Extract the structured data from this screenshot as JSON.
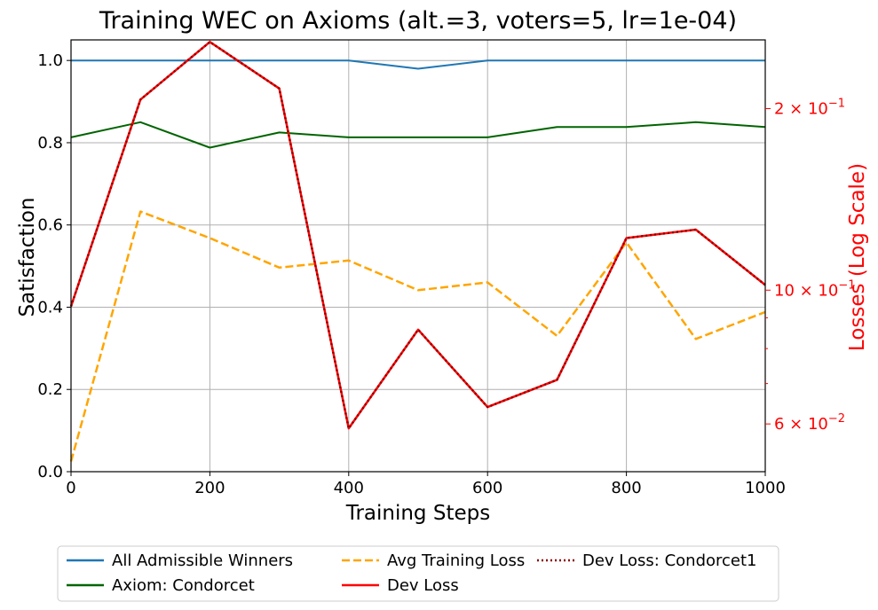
{
  "chart_data": {
    "type": "line",
    "title": "Training WEC on Axioms (alt.=3, voters=5, lr=1e-04)",
    "xlabel": "Training Steps",
    "ylabel_left": "Satisfaction",
    "ylabel_right": "Losses (Log Scale)",
    "xlim": [
      0,
      1000
    ],
    "ylim_left": [
      0.0,
      1.05
    ],
    "ylim_right": [
      0.05,
      0.26
    ],
    "right_scale": "log",
    "grid": true,
    "legend_position": "bottom-center",
    "x_ticks": [
      "0",
      "200",
      "400",
      "600",
      "800",
      "1000"
    ],
    "y_left_ticks": [
      "0.0",
      "0.2",
      "0.4",
      "0.6",
      "0.8",
      "1.0"
    ],
    "y_right_tick_labels": [
      {
        "value": 0.2,
        "base": "2",
        "exp": "−1"
      },
      {
        "value": 0.1,
        "base": "10",
        "exp": "−1"
      },
      {
        "value": 0.06,
        "base": "6",
        "exp": "−2"
      }
    ],
    "y_right_minor_ticks": [
      0.09,
      0.08,
      0.07
    ],
    "x": [
      0,
      100,
      200,
      300,
      400,
      500,
      600,
      700,
      800,
      900,
      1000
    ],
    "series": [
      {
        "name": "All Admissible Winners",
        "axis": "left",
        "color": "#1f77b4",
        "style": "solid",
        "values": [
          1.0,
          1.0,
          1.0,
          1.0,
          1.0,
          0.98,
          1.0,
          1.0,
          1.0,
          1.0,
          1.0
        ]
      },
      {
        "name": "Axiom: Condorcet",
        "axis": "left",
        "color": "#006400",
        "style": "solid",
        "values": [
          0.813,
          0.85,
          0.788,
          0.825,
          0.813,
          0.813,
          0.813,
          0.838,
          0.838,
          0.85,
          0.838
        ]
      },
      {
        "name": "Avg Training Loss",
        "axis": "right",
        "color": "#ffa500",
        "style": "dashed",
        "values": [
          0.052,
          0.135,
          0.122,
          0.109,
          0.112,
          0.1,
          0.103,
          0.084,
          0.12,
          0.083,
          0.092
        ]
      },
      {
        "name": "Dev Loss",
        "axis": "right",
        "color": "#ff0000",
        "style": "solid",
        "values": [
          0.094,
          0.207,
          0.258,
          0.216,
          0.059,
          0.086,
          0.064,
          0.071,
          0.122,
          0.126,
          0.102
        ]
      },
      {
        "name": "Dev Loss: Condorcet1",
        "axis": "right",
        "color": "#8b0000",
        "style": "dotted",
        "values": [
          0.094,
          0.207,
          0.258,
          0.216,
          0.059,
          0.086,
          0.064,
          0.071,
          0.122,
          0.126,
          0.102
        ]
      }
    ]
  }
}
